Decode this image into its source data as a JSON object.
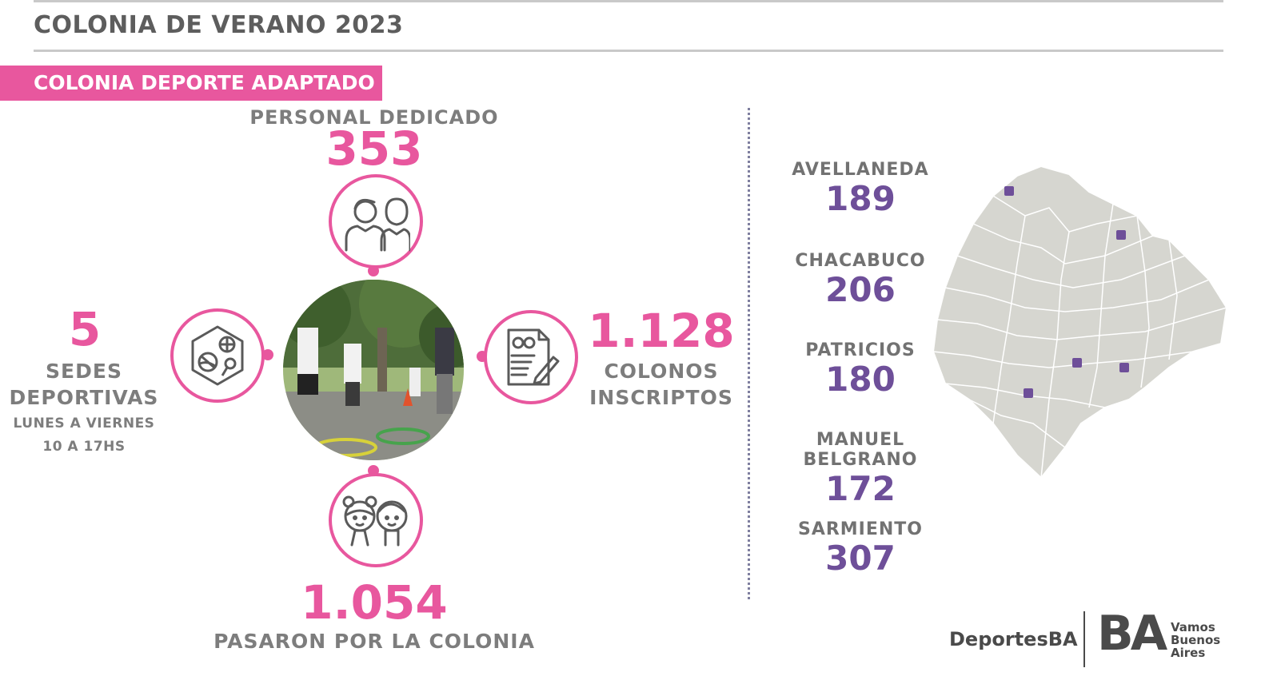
{
  "header": {
    "title": "COLONIA DE VERANO 2023",
    "section": "COLONIA DEPORTE ADAPTADO"
  },
  "stats": {
    "personal": {
      "label": "PERSONAL DEDICADO",
      "value": "353"
    },
    "sedes": {
      "value": "5",
      "label_1": "SEDES",
      "label_2": "DEPORTIVAS",
      "schedule_1": "LUNES A VIERNES",
      "schedule_2": "10 A 17HS"
    },
    "colonos": {
      "value": "1.128",
      "label_1": "COLONOS",
      "label_2": "INSCRIPTOS"
    },
    "pasaron": {
      "value": "1.054",
      "label": "PASARON POR LA COLONIA"
    }
  },
  "icons": {
    "personal": "staff-people-icon",
    "sedes": "sports-balls-icon",
    "colonos": "registration-form-icon",
    "pasaron": "children-icon"
  },
  "sites": [
    {
      "name": "AVELLANEDA",
      "value": "189"
    },
    {
      "name": "CHACABUCO",
      "value": "206"
    },
    {
      "name": "PATRICIOS",
      "value": "180"
    },
    {
      "name": "MANUEL BELGRANO",
      "value": "172"
    },
    {
      "name": "SARMIENTO",
      "value": "307"
    }
  ],
  "footer": {
    "brand_left": "DeportesBA",
    "brand_logo": "BA",
    "brand_right_1": "Vamos",
    "brand_right_2": "Buenos",
    "brand_right_3": "Aires"
  },
  "colors": {
    "accent_pink": "#e8579e",
    "accent_purple": "#6e4f99",
    "text_gray": "#7d7d7d",
    "map_fill": "#d6d6d0"
  }
}
